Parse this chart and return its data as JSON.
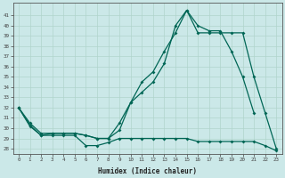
{
  "xlabel": "Humidex (Indice chaleur)",
  "bg_color": "#cbe8e8",
  "grid_color": "#b0d4cc",
  "line_color": "#006655",
  "xlim": [
    -0.5,
    23.5
  ],
  "ylim": [
    27.5,
    42.2
  ],
  "xticks": [
    0,
    1,
    2,
    3,
    4,
    5,
    6,
    7,
    8,
    9,
    10,
    11,
    12,
    13,
    14,
    15,
    16,
    17,
    18,
    19,
    20,
    21,
    22,
    23
  ],
  "yticks": [
    28,
    29,
    30,
    31,
    32,
    33,
    34,
    35,
    36,
    37,
    38,
    39,
    40,
    41
  ],
  "series1_x": [
    0,
    1,
    2,
    3,
    4,
    5,
    6,
    7,
    8,
    9,
    10,
    11,
    12,
    13,
    14,
    15,
    16,
    17,
    18,
    19,
    20,
    21,
    22,
    23
  ],
  "series1_y": [
    32.0,
    30.2,
    29.3,
    29.3,
    29.3,
    29.3,
    28.3,
    28.3,
    28.6,
    29.0,
    29.0,
    29.0,
    29.0,
    29.0,
    29.0,
    29.0,
    28.7,
    28.7,
    28.7,
    28.7,
    28.7,
    28.7,
    28.3,
    27.8
  ],
  "series2_x": [
    0,
    1,
    2,
    3,
    4,
    5,
    6,
    7,
    8,
    9,
    10,
    11,
    12,
    13,
    14,
    15,
    16,
    17,
    18,
    19,
    20,
    21,
    22,
    23
  ],
  "series2_y": [
    32.0,
    30.3,
    29.3,
    29.5,
    29.5,
    29.5,
    29.3,
    29.0,
    29.0,
    30.5,
    32.5,
    33.5,
    34.5,
    36.3,
    40.0,
    41.5,
    40.0,
    39.5,
    39.5,
    37.5,
    35.0,
    31.5,
    null,
    null
  ],
  "series3_x": [
    0,
    1,
    2,
    3,
    4,
    5,
    6,
    7,
    8,
    9,
    10,
    11,
    12,
    13,
    14,
    15,
    16,
    17,
    18,
    19,
    20,
    21,
    22,
    23
  ],
  "series3_y": [
    32.0,
    30.5,
    29.5,
    29.5,
    29.5,
    29.5,
    29.3,
    29.0,
    29.0,
    29.8,
    32.5,
    34.5,
    35.5,
    37.5,
    39.3,
    41.5,
    39.3,
    39.3,
    39.3,
    39.3,
    39.3,
    35.0,
    31.5,
    28.0
  ]
}
